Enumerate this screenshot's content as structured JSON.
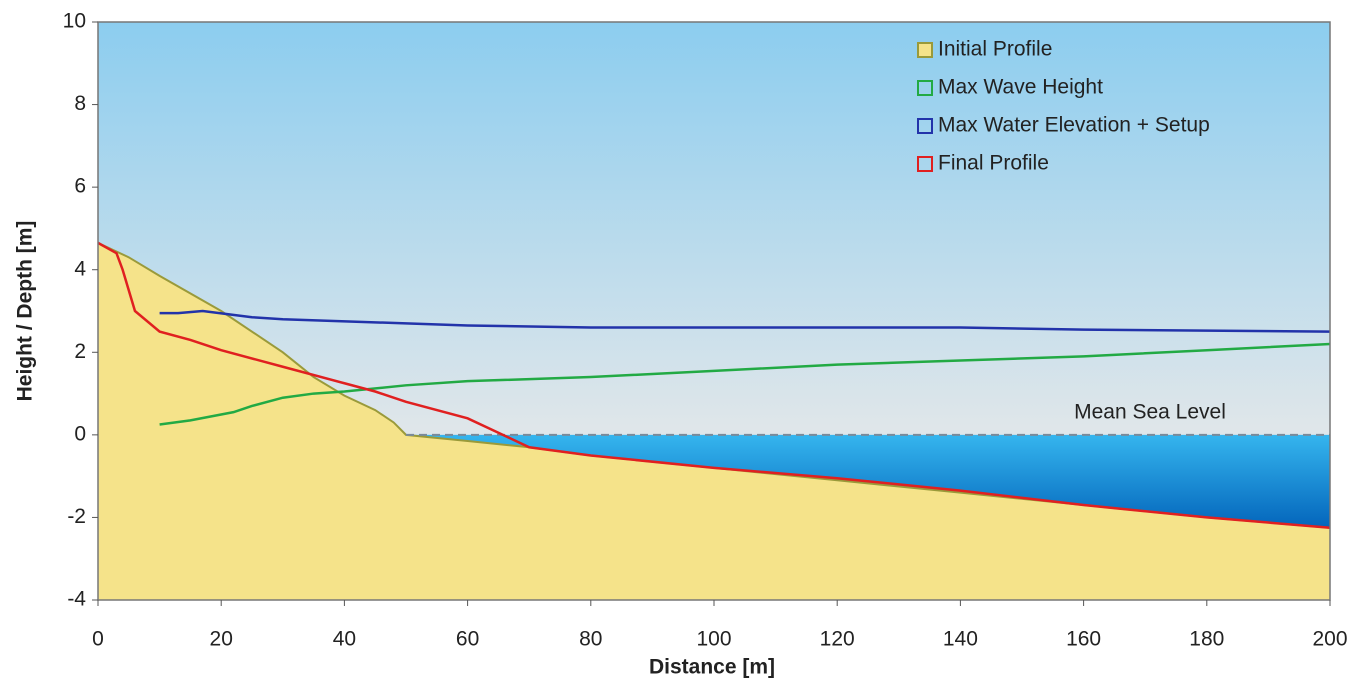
{
  "chart_data": {
    "type": "line",
    "xlabel": "Distance  [m]",
    "ylabel": "Height / Depth  [m]",
    "xlim": [
      0,
      200
    ],
    "xticks": [
      0,
      20,
      40,
      60,
      80,
      100,
      120,
      140,
      160,
      180,
      200
    ],
    "ylim": [
      -4,
      10
    ],
    "yticks": [
      -4,
      -2,
      0,
      2,
      4,
      6,
      8,
      10
    ],
    "annotation": {
      "text": "Mean Sea Level",
      "value": 0
    },
    "legend": "upper right",
    "series": [
      {
        "name": "Initial Profile",
        "color": "#9a9a3a",
        "fill": "#f5e38a",
        "area": true,
        "x": [
          0,
          5,
          10,
          20,
          30,
          35,
          40,
          45,
          48,
          50,
          60,
          70,
          80,
          100,
          120,
          140,
          160,
          180,
          200
        ],
        "values": [
          4.65,
          4.3,
          3.85,
          3.0,
          2.0,
          1.4,
          0.95,
          0.6,
          0.3,
          0.0,
          -0.15,
          -0.3,
          -0.5,
          -0.8,
          -1.1,
          -1.4,
          -1.7,
          -2.0,
          -2.25
        ]
      },
      {
        "name": "Max Wave Height",
        "color": "#22aa44",
        "x": [
          10,
          15,
          22,
          25,
          30,
          35,
          40,
          50,
          60,
          80,
          100,
          120,
          140,
          160,
          180,
          200
        ],
        "values": [
          0.25,
          0.35,
          0.55,
          0.7,
          0.9,
          1.0,
          1.05,
          1.2,
          1.3,
          1.4,
          1.55,
          1.7,
          1.8,
          1.9,
          2.05,
          2.2
        ]
      },
      {
        "name": "Max Water Elevation + Setup",
        "color": "#2233aa",
        "x": [
          10,
          13,
          17,
          25,
          30,
          50,
          60,
          80,
          100,
          120,
          140,
          160,
          200
        ],
        "values": [
          2.95,
          2.95,
          3.0,
          2.85,
          2.8,
          2.7,
          2.65,
          2.6,
          2.6,
          2.6,
          2.6,
          2.55,
          2.5
        ]
      },
      {
        "name": "Final Profile",
        "color": "#e02020",
        "x": [
          0,
          3,
          4,
          5,
          6,
          10,
          15,
          20,
          30,
          40,
          45,
          50,
          60,
          65,
          70,
          80,
          100,
          120,
          140,
          160,
          180,
          200
        ],
        "values": [
          4.65,
          4.4,
          4.0,
          3.5,
          3.0,
          2.5,
          2.3,
          2.05,
          1.65,
          1.25,
          1.05,
          0.8,
          0.4,
          0.05,
          -0.3,
          -0.5,
          -0.8,
          -1.05,
          -1.35,
          -1.7,
          -2.0,
          -2.25
        ]
      }
    ]
  }
}
